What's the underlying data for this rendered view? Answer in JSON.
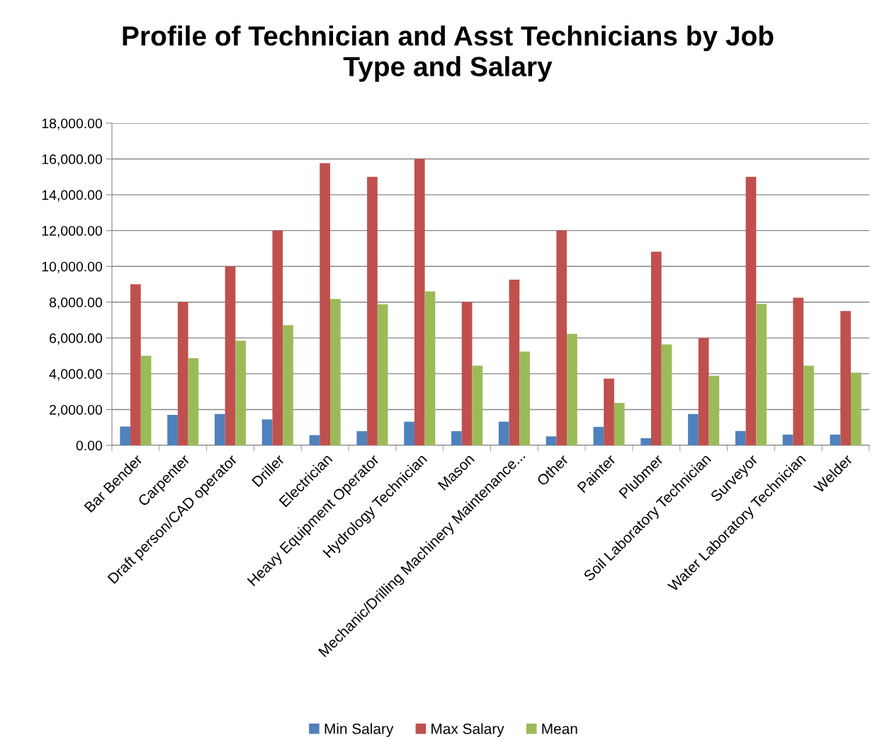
{
  "chart_data": {
    "type": "bar",
    "title": "Profile of Technician and Asst Technicians by Job Type and Salary",
    "categories": [
      "Bar Bender",
      "Carpenter",
      "Draft person/CAD operator",
      "Driller",
      "Electrician",
      "Heavy Equipment Operator",
      "Hydrology Technician",
      "Mason",
      "Mechanic/Drilling Machinery Maintenance...",
      "Other",
      "Painter",
      "Plubmer",
      "Soil Laboratory Technician",
      "Surveyor",
      "Water Laboratory Technician",
      "Welder"
    ],
    "series": [
      {
        "name": "Min Salary",
        "color": "#4f81bd",
        "values": [
          1050,
          1700,
          1750,
          1450,
          570,
          790,
          1320,
          790,
          1320,
          500,
          1030,
          400,
          1750,
          800,
          600,
          600
        ]
      },
      {
        "name": "Max Salary",
        "color": "#c0504d",
        "values": [
          9000,
          8000,
          10000,
          12000,
          15760,
          15000,
          16000,
          8000,
          9260,
          12000,
          3730,
          10820,
          6000,
          15000,
          8250,
          7510
        ]
      },
      {
        "name": "Mean",
        "color": "#9bbb59",
        "values": [
          5000,
          4870,
          5850,
          6720,
          8180,
          7880,
          8600,
          4450,
          5240,
          6230,
          2370,
          5640,
          3890,
          7900,
          4450,
          4060
        ]
      }
    ],
    "ylim": [
      0,
      18000
    ],
    "yticks": [
      {
        "value": 0,
        "label": "0.00"
      },
      {
        "value": 2000,
        "label": "2,000.00"
      },
      {
        "value": 4000,
        "label": "4,000.00"
      },
      {
        "value": 6000,
        "label": "6,000.00"
      },
      {
        "value": 8000,
        "label": "8,000.00"
      },
      {
        "value": 10000,
        "label": "10,000.00"
      },
      {
        "value": 12000,
        "label": "12,000.00"
      },
      {
        "value": 14000,
        "label": "14,000.00"
      },
      {
        "value": 16000,
        "label": "16,000.00"
      },
      {
        "value": 18000,
        "label": "18,000.00"
      }
    ],
    "grid": "y",
    "legend": "bottom"
  }
}
